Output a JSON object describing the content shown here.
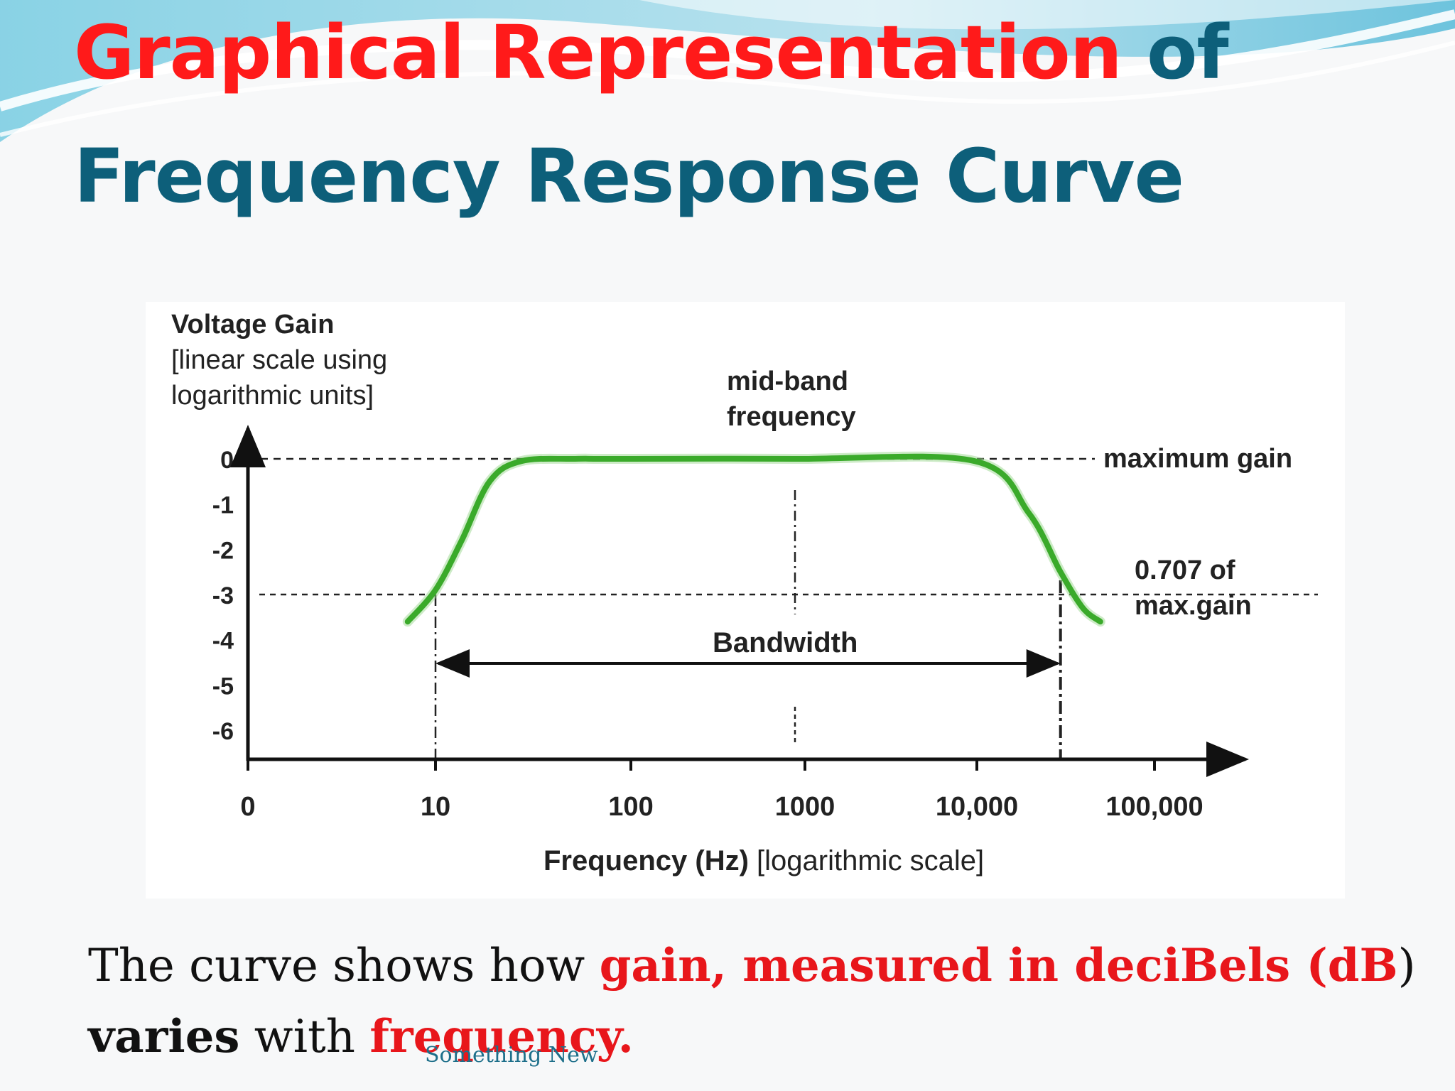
{
  "slide": {
    "title_line1_red": "Graphical Representation",
    "title_line1_rest": " of",
    "title_line2": "Frequency Response Curve",
    "caption": {
      "part1": "The curve shows how ",
      "part2": "gain, measured in deciBels (dB",
      "part3": ")",
      "part4": "varies",
      "part5": " with ",
      "part6": "frequency."
    },
    "footer": "Something New"
  },
  "colors": {
    "title_red": "#ff1a1a",
    "title_teal": "#0d5f7a",
    "curve_green": "#3aaa2a",
    "caption_red": "#e8161b"
  },
  "chart_data": {
    "type": "line",
    "ylabel_lines": [
      "Voltage Gain",
      "[linear scale using",
      "logarithmic units]"
    ],
    "xlabel_bold": "Frequency (Hz)",
    "xlabel_rest": " [logarithmic scale]",
    "x_ticks": [
      "0",
      "10",
      "100",
      "1000",
      "10,000",
      "100,000"
    ],
    "y_ticks": [
      "0",
      "-1",
      "-2",
      "-3",
      "-4",
      "-5",
      "-6"
    ],
    "x_scale": "log",
    "ylim": [
      -6,
      0
    ],
    "series": [
      {
        "x": [
          7,
          10,
          14,
          20,
          30,
          60,
          100,
          1000,
          10000,
          20000,
          30000,
          40000,
          50000
        ],
        "y": [
          -3.6,
          -2.9,
          -1.8,
          -0.5,
          -0.05,
          0,
          0,
          0,
          -0.05,
          -1.2,
          -2.5,
          -3.3,
          -3.6
        ]
      }
    ],
    "annotations": {
      "mid_band": [
        "mid-band",
        "frequency"
      ],
      "max_gain": "maximum gain",
      "half_power": [
        "0.707  of",
        "max.gain"
      ],
      "bandwidth": "Bandwidth"
    },
    "reference_lines": {
      "max_gain_db": 0,
      "cutoff_db": -3,
      "lower_cutoff_hz": 10,
      "mid_band_hz": 1000,
      "upper_cutoff_hz": 30000
    }
  }
}
